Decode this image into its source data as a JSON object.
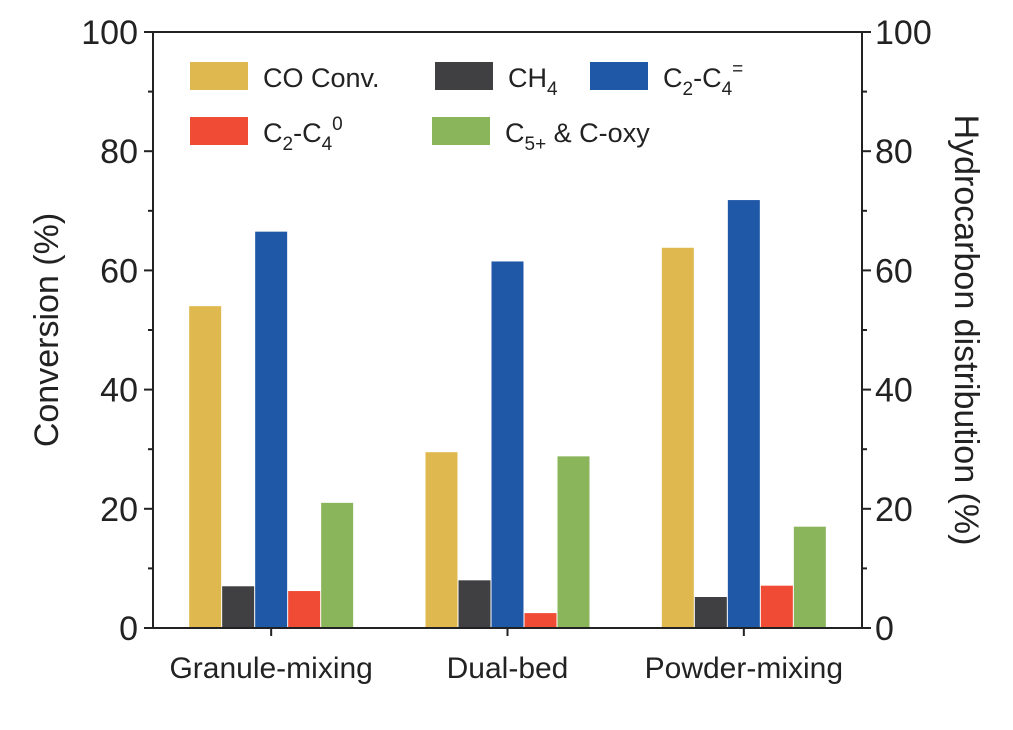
{
  "chart_data": {
    "type": "bar",
    "categories": [
      "Granule-mixing",
      "Dual-bed",
      "Powder-mixing"
    ],
    "series": [
      {
        "name": "CO Conv.",
        "legend": {
          "main": "CO Conv."
        },
        "color": "#dfb84f",
        "values": [
          54,
          29.5,
          63.8
        ]
      },
      {
        "name": "CH4",
        "legend": {
          "main": "CH",
          "sub": "4"
        },
        "color": "#404042",
        "values": [
          7,
          8,
          5.2
        ]
      },
      {
        "name": "C2-C4=",
        "legend": {
          "main": "C",
          "sub": "2",
          "main2": "-C",
          "sub2": "4",
          "sup": "="
        },
        "color": "#2058a8",
        "values": [
          66.5,
          61.5,
          71.8
        ]
      },
      {
        "name": "C2-C40",
        "legend": {
          "main": "C",
          "sub": "2",
          "main2": "-C",
          "sub2": "4",
          "sup": "0"
        },
        "color": "#f04b35",
        "values": [
          6.2,
          2.5,
          7.1
        ]
      },
      {
        "name": "C5+ & C-oxy",
        "legend": {
          "main": "C",
          "sub": "5+",
          "main2": " & C-oxy"
        },
        "color": "#8bb55a",
        "values": [
          21,
          28.8,
          17
        ]
      }
    ],
    "yleft": {
      "label": "Conversion (%)",
      "range": [
        0,
        100
      ],
      "ticks": [
        "0",
        "20",
        "40",
        "60",
        "80",
        "100"
      ]
    },
    "yright": {
      "label": "Hydrocarbon distribution (%)",
      "range": [
        0,
        100
      ],
      "ticks": [
        "0",
        "20",
        "40",
        "60",
        "80",
        "100"
      ]
    },
    "legend_position": "top-left, inside plot",
    "grid": false
  }
}
